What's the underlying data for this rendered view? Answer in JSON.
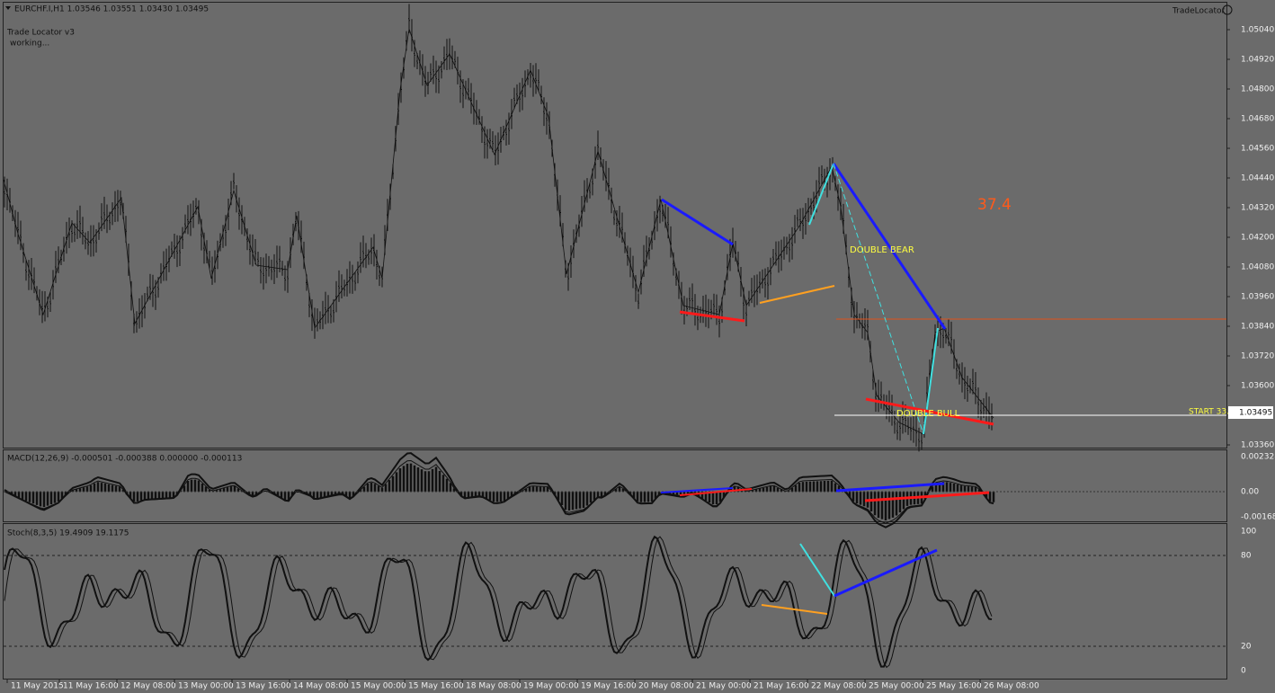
{
  "header": {
    "symbol_line": "EURCHF.I,H1  1.03546 1.03551 1.03430 1.03495",
    "indicator_name": "TradeLocator",
    "status_title": "Trade Locator v3",
    "status_text": "working..."
  },
  "annotations": {
    "score": "37.4",
    "bear": "DOUBLE  BEAR",
    "bull": "DOUBLE  BULL",
    "start": "START 33.0"
  },
  "price_axis": {
    "ticks": [
      "1.05040",
      "1.04920",
      "1.04800",
      "1.04680",
      "1.04560",
      "1.04440",
      "1.04320",
      "1.04200",
      "1.04080",
      "1.03960",
      "1.03840",
      "1.03720",
      "1.03600",
      "1.03360"
    ],
    "current": "1.03495"
  },
  "macd": {
    "label": "MACD(12,26,9) -0.000501 -0.000388 0.000000 -0.000113",
    "ticks": [
      "0.002328",
      "0.00",
      "-0.001684"
    ]
  },
  "stoch": {
    "label": "Stoch(8,3,5) 19.4909 19.1175",
    "ticks": [
      "100",
      "80",
      "20",
      "0"
    ]
  },
  "time_axis": [
    "11 May 2015",
    "11 May 16:00",
    "12 May 08:00",
    "13 May 00:00",
    "13 May 16:00",
    "14 May 08:00",
    "15 May 00:00",
    "15 May 16:00",
    "18 May 08:00",
    "19 May 00:00",
    "19 May 16:00",
    "20 May 08:00",
    "21 May 00:00",
    "21 May 16:00",
    "22 May 08:00",
    "25 May 00:00",
    "25 May 16:00",
    "26 May 08:00"
  ]
}
